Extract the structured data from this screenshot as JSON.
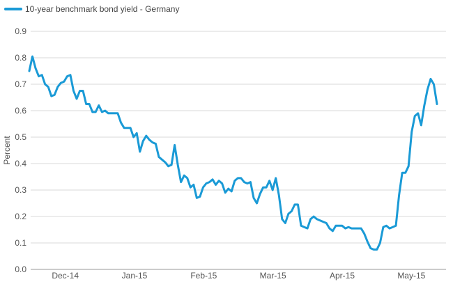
{
  "chart_data": {
    "type": "line",
    "title": "",
    "xlabel": "",
    "ylabel": "Percent",
    "ylim": [
      0,
      0.9
    ],
    "y_ticks": [
      0.0,
      0.1,
      0.2,
      0.3,
      0.4,
      0.5,
      0.6,
      0.7,
      0.8,
      0.9
    ],
    "y_tick_labels": [
      "0.0",
      "0.1",
      "0.2",
      "0.3",
      "0.4",
      "0.5",
      "0.6",
      "0.7",
      "0.8",
      "0.9"
    ],
    "x_tick_labels": [
      "Dec-14",
      "Jan-15",
      "Feb-15",
      "Mar-15",
      "Apr-15",
      "May-15"
    ],
    "grid": "horizontal",
    "legend_position": "top-left",
    "series": [
      {
        "name": "10-year benchmark bond yield - Germany",
        "color": "#1a9ad6",
        "values": [
          0.75,
          0.805,
          0.76,
          0.73,
          0.735,
          0.7,
          0.69,
          0.655,
          0.66,
          0.69,
          0.705,
          0.71,
          0.73,
          0.735,
          0.675,
          0.645,
          0.675,
          0.675,
          0.625,
          0.625,
          0.595,
          0.595,
          0.62,
          0.595,
          0.6,
          0.59,
          0.59,
          0.59,
          0.59,
          0.555,
          0.535,
          0.535,
          0.535,
          0.5,
          0.515,
          0.445,
          0.485,
          0.505,
          0.49,
          0.48,
          0.475,
          0.425,
          0.415,
          0.405,
          0.39,
          0.395,
          0.47,
          0.395,
          0.33,
          0.355,
          0.345,
          0.31,
          0.32,
          0.27,
          0.275,
          0.31,
          0.325,
          0.33,
          0.34,
          0.32,
          0.335,
          0.325,
          0.29,
          0.305,
          0.295,
          0.335,
          0.345,
          0.345,
          0.33,
          0.325,
          0.33,
          0.27,
          0.25,
          0.285,
          0.31,
          0.31,
          0.335,
          0.3,
          0.345,
          0.28,
          0.19,
          0.175,
          0.21,
          0.22,
          0.245,
          0.245,
          0.165,
          0.16,
          0.155,
          0.19,
          0.2,
          0.19,
          0.185,
          0.18,
          0.175,
          0.155,
          0.145,
          0.165,
          0.165,
          0.165,
          0.155,
          0.16,
          0.155,
          0.155,
          0.155,
          0.155,
          0.135,
          0.105,
          0.08,
          0.075,
          0.075,
          0.1,
          0.16,
          0.165,
          0.155,
          0.16,
          0.165,
          0.28,
          0.365,
          0.365,
          0.39,
          0.52,
          0.58,
          0.59,
          0.545,
          0.62,
          0.68,
          0.72,
          0.7,
          0.625
        ]
      }
    ]
  }
}
